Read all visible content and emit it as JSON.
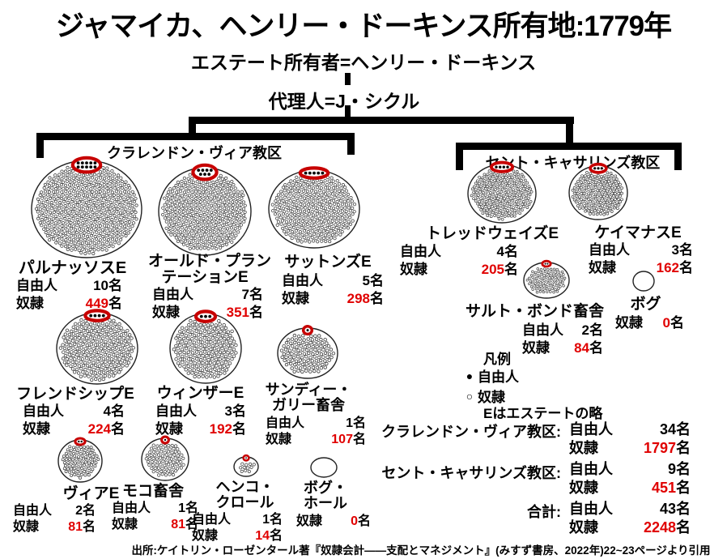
{
  "title": "ジャマイカ、ヘンリー・ドーキンス所有地:1779年",
  "owner_line": "エステート所有者=ヘンリー・ドーキンス",
  "agent_line": "代理人=J・シクル",
  "labels": {
    "free": "自由人",
    "slave": "奴隷",
    "unit": "名"
  },
  "parishes": [
    {
      "id": "clarendon",
      "label": "クラレンドン・ヴィア教区"
    },
    {
      "id": "st-catherines",
      "label": "セント・キャサリンズ教区"
    }
  ],
  "estates": [
    {
      "id": "parnassus",
      "parish": "clarendon",
      "name_lines": [
        "パルナッソスE"
      ],
      "free": "10",
      "slaves": "449"
    },
    {
      "id": "old-plantation",
      "parish": "clarendon",
      "name_lines": [
        "オールド・プラン",
        "テーションE"
      ],
      "free": "7",
      "slaves": "351"
    },
    {
      "id": "suttons",
      "parish": "clarendon",
      "name_lines": [
        "サットンズE"
      ],
      "free": "5",
      "slaves": "298"
    },
    {
      "id": "friendship",
      "parish": "clarendon",
      "name_lines": [
        "フレンドシップE"
      ],
      "free": "4",
      "slaves": "224"
    },
    {
      "id": "windsor",
      "parish": "clarendon",
      "name_lines": [
        "ウィンザーE"
      ],
      "free": "3",
      "slaves": "192"
    },
    {
      "id": "sandy-gully",
      "parish": "clarendon",
      "name_lines": [
        "サンディー・",
        "ガリー畜舎"
      ],
      "free": "1",
      "slaves": "107"
    },
    {
      "id": "vere",
      "parish": "clarendon",
      "name_lines": [
        "ヴィアE"
      ],
      "free": "2",
      "slaves": "81"
    },
    {
      "id": "moco",
      "parish": "clarendon",
      "name_lines": [
        "モコ畜舎"
      ],
      "free": "1",
      "slaves": "81"
    },
    {
      "id": "henko-crawle",
      "parish": "clarendon",
      "name_lines": [
        "ヘンコ・",
        "クロール"
      ],
      "free": "1",
      "slaves": "14"
    },
    {
      "id": "bog-hall",
      "parish": "clarendon",
      "name_lines": [
        "ボグ・",
        "ホール"
      ],
      "free": null,
      "slaves": "0"
    },
    {
      "id": "treadways",
      "parish": "st-catherines",
      "name_lines": [
        "トレッドウェイズE"
      ],
      "free": "4",
      "slaves": "205"
    },
    {
      "id": "caymanas",
      "parish": "st-catherines",
      "name_lines": [
        "ケイマナスE"
      ],
      "free": "3",
      "slaves": "162"
    },
    {
      "id": "salt-pond-pen",
      "parish": "st-catherines",
      "name_lines": [
        "サルト・ボンド畜舎"
      ],
      "free": "2",
      "slaves": "84"
    },
    {
      "id": "bog",
      "parish": "st-catherines",
      "name_lines": [
        "ボグ"
      ],
      "free": null,
      "slaves": "0"
    }
  ],
  "legend": {
    "title": "凡例",
    "free_symbol": "●",
    "free": "自由人",
    "slave_symbol": "○",
    "slave": "奴隷",
    "note": "Eはエステートの略"
  },
  "totals": [
    {
      "label": "クラレンドン・ヴィア教区:",
      "free": "34",
      "slaves": "1797"
    },
    {
      "label": "セント・キャサリンズ教区:",
      "free": "9",
      "slaves": "451"
    },
    {
      "label": "合計:",
      "free": "43",
      "slaves": "2248"
    }
  ],
  "source": "出所:ケイトリン・ローゼンタール著『奴隷会計——支配とマネジメント』(みすず書房、2022年)22~23ページより引用",
  "colors": {
    "accent_red": "#e00000",
    "oval_red": "#c70000"
  }
}
